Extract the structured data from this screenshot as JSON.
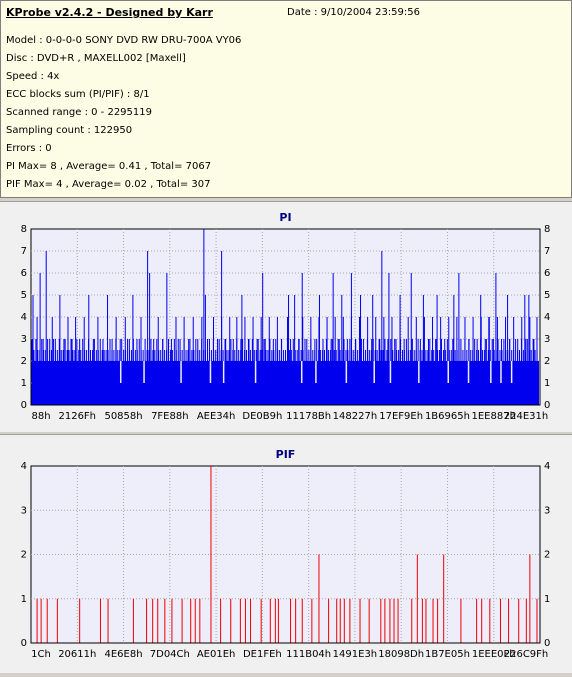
{
  "header": {
    "title": "KProbe v2.4.2 - Designed by Karr",
    "date": "Date : 9/10/2004 23:59:56"
  },
  "info_lines": [
    "Model : 0-0-0-0 SONY    DVD RW DRU-700A  VY06",
    "Disc : DVD+R , MAXELL002 [Maxell]",
    "Speed : 4x",
    "ECC blocks sum (PI/PIF) : 8/1",
    "Scanned range : 0 - 2295119",
    "Sampling count : 122950",
    "Errors : 0",
    "PI Max= 8 , Average= 0.41 , Total= 7067",
    "PIF Max= 4 , Average= 0.02 , Total= 307"
  ],
  "colors": {
    "pi_bars": "#0000ee",
    "pif_bars": "#ee0000",
    "plot_bg": "#eeeefa",
    "title_color": "#000080",
    "grid": "#a8a8a8"
  },
  "chart_data": [
    {
      "type": "bar",
      "title": "PI",
      "ylim": [
        0,
        8
      ],
      "yticks": [
        0,
        1,
        2,
        3,
        4,
        5,
        6,
        7,
        8
      ],
      "xticks": [
        "88h",
        "2126Fh",
        "50858h",
        "7FE88h",
        "AEE34h",
        "DE0B9h",
        "11178Bh",
        "148227h",
        "17EF9Eh",
        "1B6965h",
        "1EE887h",
        "224E31h"
      ],
      "grid": true,
      "baseline": 2,
      "spikes": [
        {
          "x": 0.002,
          "y": 5
        },
        {
          "x": 0.01,
          "y": 4
        },
        {
          "x": 0.016,
          "y": 6
        },
        {
          "x": 0.022,
          "y": 3
        },
        {
          "x": 0.028,
          "y": 7
        },
        {
          "x": 0.035,
          "y": 3
        },
        {
          "x": 0.04,
          "y": 4
        },
        {
          "x": 0.046,
          "y": 3
        },
        {
          "x": 0.055,
          "y": 5
        },
        {
          "x": 0.063,
          "y": 3
        },
        {
          "x": 0.071,
          "y": 4
        },
        {
          "x": 0.079,
          "y": 3
        },
        {
          "x": 0.086,
          "y": 4
        },
        {
          "x": 0.094,
          "y": 3
        },
        {
          "x": 0.103,
          "y": 4
        },
        {
          "x": 0.112,
          "y": 5
        },
        {
          "x": 0.121,
          "y": 3
        },
        {
          "x": 0.13,
          "y": 4
        },
        {
          "x": 0.14,
          "y": 3
        },
        {
          "x": 0.149,
          "y": 5
        },
        {
          "x": 0.158,
          "y": 3
        },
        {
          "x": 0.166,
          "y": 4
        },
        {
          "x": 0.174,
          "y": 3
        },
        {
          "x": 0.184,
          "y": 4
        },
        {
          "x": 0.192,
          "y": 3
        },
        {
          "x": 0.199,
          "y": 5
        },
        {
          "x": 0.207,
          "y": 3
        },
        {
          "x": 0.215,
          "y": 4
        },
        {
          "x": 0.228,
          "y": 7
        },
        {
          "x": 0.232,
          "y": 6
        },
        {
          "x": 0.24,
          "y": 3
        },
        {
          "x": 0.249,
          "y": 4
        },
        {
          "x": 0.258,
          "y": 3
        },
        {
          "x": 0.266,
          "y": 6
        },
        {
          "x": 0.275,
          "y": 3
        },
        {
          "x": 0.284,
          "y": 4
        },
        {
          "x": 0.292,
          "y": 3
        },
        {
          "x": 0.3,
          "y": 4
        },
        {
          "x": 0.309,
          "y": 3
        },
        {
          "x": 0.318,
          "y": 4
        },
        {
          "x": 0.327,
          "y": 3
        },
        {
          "x": 0.335,
          "y": 4
        },
        {
          "x": 0.342,
          "y": 5
        },
        {
          "x": 0.35,
          "y": 3
        },
        {
          "x": 0.358,
          "y": 4
        },
        {
          "x": 0.366,
          "y": 3
        },
        {
          "x": 0.374,
          "y": 4
        },
        {
          "x": 0.382,
          "y": 3
        },
        {
          "x": 0.39,
          "y": 4
        },
        {
          "x": 0.397,
          "y": 3
        },
        {
          "x": 0.404,
          "y": 4
        },
        {
          "x": 0.412,
          "y": 3
        },
        {
          "x": 0.42,
          "y": 4
        },
        {
          "x": 0.428,
          "y": 3
        },
        {
          "x": 0.436,
          "y": 4
        },
        {
          "x": 0.444,
          "y": 3
        },
        {
          "x": 0.452,
          "y": 4
        },
        {
          "x": 0.46,
          "y": 3
        },
        {
          "x": 0.468,
          "y": 4
        },
        {
          "x": 0.476,
          "y": 3
        },
        {
          "x": 0.484,
          "y": 4
        },
        {
          "x": 0.492,
          "y": 3
        },
        {
          "x": 0.504,
          "y": 4
        },
        {
          "x": 0.51,
          "y": 3
        },
        {
          "x": 0.518,
          "y": 5
        },
        {
          "x": 0.526,
          "y": 3
        },
        {
          "x": 0.534,
          "y": 4
        },
        {
          "x": 0.542,
          "y": 3
        },
        {
          "x": 0.55,
          "y": 4
        },
        {
          "x": 0.558,
          "y": 3
        },
        {
          "x": 0.566,
          "y": 4
        },
        {
          "x": 0.574,
          "y": 3
        },
        {
          "x": 0.582,
          "y": 4
        },
        {
          "x": 0.59,
          "y": 3
        },
        {
          "x": 0.598,
          "y": 4
        },
        {
          "x": 0.606,
          "y": 3
        },
        {
          "x": 0.614,
          "y": 4
        },
        {
          "x": 0.622,
          "y": 3
        },
        {
          "x": 0.63,
          "y": 4
        },
        {
          "x": 0.638,
          "y": 3
        },
        {
          "x": 0.646,
          "y": 4
        },
        {
          "x": 0.654,
          "y": 3
        },
        {
          "x": 0.662,
          "y": 4
        },
        {
          "x": 0.67,
          "y": 3
        },
        {
          "x": 0.678,
          "y": 4
        },
        {
          "x": 0.686,
          "y": 3
        },
        {
          "x": 0.694,
          "y": 4
        },
        {
          "x": 0.702,
          "y": 3
        },
        {
          "x": 0.71,
          "y": 4
        },
        {
          "x": 0.718,
          "y": 3
        },
        {
          "x": 0.726,
          "y": 4
        },
        {
          "x": 0.734,
          "y": 3
        },
        {
          "x": 0.742,
          "y": 4
        },
        {
          "x": 0.75,
          "y": 3
        },
        {
          "x": 0.758,
          "y": 4
        },
        {
          "x": 0.766,
          "y": 3
        },
        {
          "x": 0.774,
          "y": 4
        },
        {
          "x": 0.782,
          "y": 3
        },
        {
          "x": 0.79,
          "y": 4
        },
        {
          "x": 0.798,
          "y": 3
        },
        {
          "x": 0.806,
          "y": 4
        },
        {
          "x": 0.814,
          "y": 3
        },
        {
          "x": 0.822,
          "y": 4
        },
        {
          "x": 0.83,
          "y": 3
        },
        {
          "x": 0.838,
          "y": 4
        },
        {
          "x": 0.846,
          "y": 3
        },
        {
          "x": 0.854,
          "y": 4
        },
        {
          "x": 0.862,
          "y": 3
        },
        {
          "x": 0.87,
          "y": 4
        },
        {
          "x": 0.878,
          "y": 3
        },
        {
          "x": 0.886,
          "y": 4
        },
        {
          "x": 0.894,
          "y": 3
        },
        {
          "x": 0.902,
          "y": 4
        },
        {
          "x": 0.91,
          "y": 3
        },
        {
          "x": 0.918,
          "y": 4
        },
        {
          "x": 0.926,
          "y": 3
        },
        {
          "x": 0.934,
          "y": 4
        },
        {
          "x": 0.942,
          "y": 3
        },
        {
          "x": 0.95,
          "y": 4
        },
        {
          "x": 0.958,
          "y": 3
        },
        {
          "x": 0.966,
          "y": 4
        },
        {
          "x": 0.974,
          "y": 3
        },
        {
          "x": 0.982,
          "y": 4
        },
        {
          "x": 0.99,
          "y": 3
        },
        {
          "x": 0.339,
          "y": 8
        },
        {
          "x": 0.374,
          "y": 7
        },
        {
          "x": 0.414,
          "y": 5
        },
        {
          "x": 0.455,
          "y": 6
        },
        {
          "x": 0.506,
          "y": 5
        },
        {
          "x": 0.533,
          "y": 6
        },
        {
          "x": 0.567,
          "y": 5
        },
        {
          "x": 0.594,
          "y": 6
        },
        {
          "x": 0.611,
          "y": 5
        },
        {
          "x": 0.63,
          "y": 6
        },
        {
          "x": 0.648,
          "y": 5
        },
        {
          "x": 0.672,
          "y": 5
        },
        {
          "x": 0.69,
          "y": 7
        },
        {
          "x": 0.704,
          "y": 6
        },
        {
          "x": 0.726,
          "y": 5
        },
        {
          "x": 0.748,
          "y": 6
        },
        {
          "x": 0.772,
          "y": 5
        },
        {
          "x": 0.799,
          "y": 5
        },
        {
          "x": 0.832,
          "y": 5
        },
        {
          "x": 0.842,
          "y": 6
        },
        {
          "x": 0.885,
          "y": 5
        },
        {
          "x": 0.901,
          "y": 4
        },
        {
          "x": 0.915,
          "y": 6
        },
        {
          "x": 0.938,
          "y": 5
        },
        {
          "x": 0.972,
          "y": 5
        },
        {
          "x": 0.98,
          "y": 5
        },
        {
          "x": 0.996,
          "y": 4
        }
      ],
      "dips": [
        {
          "x": 0.175,
          "y": 1
        },
        {
          "x": 0.221,
          "y": 1
        },
        {
          "x": 0.294,
          "y": 1
        },
        {
          "x": 0.352,
          "y": 1
        },
        {
          "x": 0.378,
          "y": 1
        },
        {
          "x": 0.441,
          "y": 1
        },
        {
          "x": 0.532,
          "y": 1
        },
        {
          "x": 0.56,
          "y": 1
        },
        {
          "x": 0.62,
          "y": 1
        },
        {
          "x": 0.675,
          "y": 1
        },
        {
          "x": 0.707,
          "y": 1
        },
        {
          "x": 0.763,
          "y": 1
        },
        {
          "x": 0.821,
          "y": 1
        },
        {
          "x": 0.861,
          "y": 1
        },
        {
          "x": 0.905,
          "y": 1
        },
        {
          "x": 0.925,
          "y": 1
        },
        {
          "x": 0.946,
          "y": 1
        }
      ]
    },
    {
      "type": "bar",
      "title": "PIF",
      "ylim": [
        0,
        4
      ],
      "yticks": [
        0,
        1,
        2,
        3,
        4
      ],
      "xticks": [
        "1Ch",
        "20611h",
        "4E6E8h",
        "7D04Ch",
        "AE01Eh",
        "DE1FEh",
        "111B04h",
        "1491E3h",
        "18098Dh",
        "1B7E05h",
        "1EEE0Fh",
        "226C9Fh"
      ],
      "grid": true,
      "bars": [
        {
          "x": 0.01,
          "y": 1
        },
        {
          "x": 0.018,
          "y": 1
        },
        {
          "x": 0.03,
          "y": 1
        },
        {
          "x": 0.05,
          "y": 1
        },
        {
          "x": 0.094,
          "y": 1
        },
        {
          "x": 0.135,
          "y": 1
        },
        {
          "x": 0.15,
          "y": 1
        },
        {
          "x": 0.2,
          "y": 1
        },
        {
          "x": 0.226,
          "y": 1
        },
        {
          "x": 0.238,
          "y": 1
        },
        {
          "x": 0.248,
          "y": 1
        },
        {
          "x": 0.262,
          "y": 1
        },
        {
          "x": 0.276,
          "y": 1
        },
        {
          "x": 0.296,
          "y": 1
        },
        {
          "x": 0.313,
          "y": 1
        },
        {
          "x": 0.322,
          "y": 1
        },
        {
          "x": 0.331,
          "y": 1
        },
        {
          "x": 0.353,
          "y": 4
        },
        {
          "x": 0.372,
          "y": 1
        },
        {
          "x": 0.392,
          "y": 1
        },
        {
          "x": 0.411,
          "y": 1
        },
        {
          "x": 0.421,
          "y": 1
        },
        {
          "x": 0.431,
          "y": 1
        },
        {
          "x": 0.452,
          "y": 1
        },
        {
          "x": 0.47,
          "y": 1
        },
        {
          "x": 0.48,
          "y": 1
        },
        {
          "x": 0.486,
          "y": 1
        },
        {
          "x": 0.51,
          "y": 1
        },
        {
          "x": 0.52,
          "y": 1
        },
        {
          "x": 0.533,
          "y": 1
        },
        {
          "x": 0.552,
          "y": 1
        },
        {
          "x": 0.566,
          "y": 2
        },
        {
          "x": 0.585,
          "y": 1
        },
        {
          "x": 0.601,
          "y": 1
        },
        {
          "x": 0.608,
          "y": 1
        },
        {
          "x": 0.616,
          "y": 1
        },
        {
          "x": 0.627,
          "y": 1
        },
        {
          "x": 0.647,
          "y": 1
        },
        {
          "x": 0.665,
          "y": 1
        },
        {
          "x": 0.688,
          "y": 1
        },
        {
          "x": 0.696,
          "y": 1
        },
        {
          "x": 0.706,
          "y": 1
        },
        {
          "x": 0.714,
          "y": 1
        },
        {
          "x": 0.722,
          "y": 1
        },
        {
          "x": 0.749,
          "y": 1
        },
        {
          "x": 0.76,
          "y": 2
        },
        {
          "x": 0.77,
          "y": 1
        },
        {
          "x": 0.777,
          "y": 1
        },
        {
          "x": 0.791,
          "y": 1
        },
        {
          "x": 0.8,
          "y": 1
        },
        {
          "x": 0.812,
          "y": 2
        },
        {
          "x": 0.846,
          "y": 1
        },
        {
          "x": 0.877,
          "y": 1
        },
        {
          "x": 0.887,
          "y": 1
        },
        {
          "x": 0.903,
          "y": 1
        },
        {
          "x": 0.924,
          "y": 1
        },
        {
          "x": 0.94,
          "y": 1
        },
        {
          "x": 0.96,
          "y": 1
        },
        {
          "x": 0.975,
          "y": 1
        },
        {
          "x": 0.982,
          "y": 2
        },
        {
          "x": 0.996,
          "y": 1
        }
      ]
    }
  ]
}
